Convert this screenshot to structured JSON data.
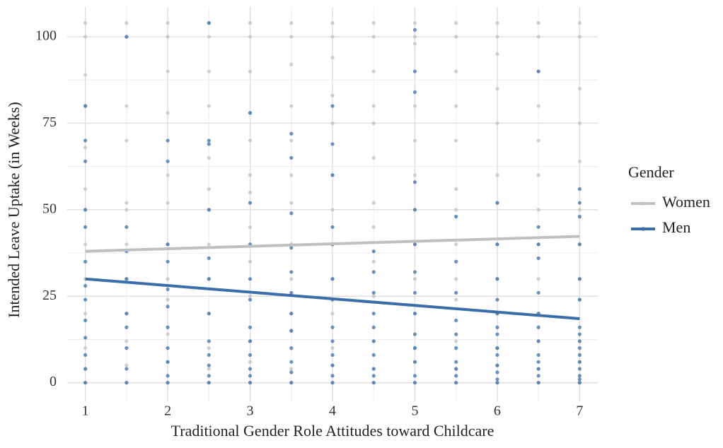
{
  "chart_data": {
    "type": "scatter",
    "x_label": "Traditional Gender Role Attitudes toward Childcare",
    "y_label": "Intended Leave Uptake (in Weeks)",
    "legend_title": "Gender",
    "legend": "right",
    "grid": true,
    "xlim": [
      0.78,
      7.22
    ],
    "ylim": [
      -5.4,
      108.6
    ],
    "xticks": [
      1,
      2,
      3,
      4,
      5,
      6,
      7
    ],
    "yticks": [
      0,
      25,
      50,
      75,
      100
    ],
    "series": [
      {
        "name": "Women",
        "color": "#c0c0c0",
        "x": [
          1,
          1,
          1,
          1,
          1,
          1,
          1,
          1,
          1,
          1,
          1,
          1,
          1,
          1.5,
          1.5,
          1.5,
          1.5,
          1.5,
          1.5,
          1.5,
          1.5,
          1.5,
          1.5,
          1.5,
          1.5,
          2,
          2,
          2,
          2,
          2,
          2,
          2,
          2,
          2,
          2,
          2,
          2,
          2.5,
          2.5,
          2.5,
          2.5,
          2.5,
          2.5,
          2.5,
          2.5,
          2.5,
          2.5,
          2.5,
          2.5,
          2.5,
          3,
          3,
          3,
          3,
          3,
          3,
          3,
          3,
          3,
          3,
          3,
          3,
          3,
          3.5,
          3.5,
          3.5,
          3.5,
          3.5,
          3.5,
          3.5,
          3.5,
          3.5,
          3.5,
          3.5,
          3.5,
          3.5,
          4,
          4,
          4,
          4,
          4,
          4,
          4,
          4,
          4,
          4,
          4,
          4,
          4,
          4.5,
          4.5,
          4.5,
          4.5,
          4.5,
          4.5,
          4.5,
          4.5,
          4.5,
          4.5,
          4.5,
          4.5,
          4.5,
          5,
          5,
          5,
          5,
          5,
          5,
          5,
          5,
          5,
          5,
          5,
          5,
          5,
          5.5,
          5.5,
          5.5,
          5.5,
          5.5,
          5.5,
          5.5,
          5.5,
          5.5,
          5.5,
          5.5,
          5.5,
          5.5,
          6,
          6,
          6,
          6,
          6,
          6,
          6,
          6,
          6,
          6,
          6,
          6,
          6,
          6.5,
          6.5,
          6.5,
          6.5,
          6.5,
          6.5,
          6.5,
          6.5,
          6.5,
          6.5,
          6.5,
          6.5,
          6.5,
          7,
          7,
          7,
          7,
          7,
          7,
          7,
          7,
          7,
          7,
          7,
          7
        ],
        "values": [
          0,
          4,
          10,
          20,
          30,
          40,
          50,
          56,
          68,
          80,
          89,
          100,
          104,
          0,
          5,
          12,
          20,
          30,
          40,
          50,
          52,
          70,
          80,
          100,
          104,
          0,
          6,
          14,
          24,
          30,
          40,
          52,
          60,
          78,
          90,
          100,
          104,
          0,
          4,
          10,
          20,
          30,
          40,
          50,
          56,
          65,
          80,
          90,
          100,
          104,
          0,
          6,
          12,
          25,
          35,
          45,
          55,
          60,
          70,
          78,
          90,
          100,
          104,
          0,
          4,
          15,
          20,
          30,
          40,
          52,
          60,
          70,
          80,
          92,
          100,
          104,
          0,
          5,
          10,
          20,
          30,
          40,
          50,
          60,
          75,
          83,
          94,
          100,
          104,
          0,
          4,
          12,
          25,
          35,
          45,
          52,
          65,
          75,
          80,
          90,
          100,
          104,
          0,
          6,
          10,
          20,
          30,
          40,
          50,
          60,
          70,
          80,
          98,
          100,
          104,
          0,
          4,
          12,
          24,
          30,
          40,
          50,
          56,
          70,
          80,
          90,
          100,
          104,
          0,
          5,
          10,
          20,
          30,
          40,
          52,
          60,
          75,
          85,
          95,
          100,
          104,
          0,
          4,
          12,
          20,
          30,
          40,
          50,
          60,
          70,
          80,
          90,
          100,
          104,
          0,
          6,
          12,
          24,
          30,
          40,
          50,
          64,
          75,
          85,
          100,
          104
        ],
        "fit": {
          "x": [
            1,
            7
          ],
          "values": [
            38,
            42.3
          ]
        }
      },
      {
        "name": "Men",
        "color": "#3b6ea8",
        "x": [
          1,
          1,
          1,
          1,
          1,
          1,
          1,
          1,
          1,
          1,
          1,
          1,
          1,
          1.5,
          1.5,
          1.5,
          1.5,
          1.5,
          1.5,
          1.5,
          1.5,
          1.5,
          2,
          2,
          2,
          2,
          2,
          2,
          2,
          2,
          2,
          2,
          2,
          2.5,
          2.5,
          2.5,
          2.5,
          2.5,
          2.5,
          2.5,
          2.5,
          2.5,
          2.5,
          2.5,
          2.5,
          3,
          3,
          3,
          3,
          3,
          3,
          3,
          3,
          3,
          3,
          3,
          3.5,
          3.5,
          3.5,
          3.5,
          3.5,
          3.5,
          3.5,
          3.5,
          3.5,
          3.5,
          3.5,
          3.5,
          4,
          4,
          4,
          4,
          4,
          4,
          4,
          4,
          4,
          4,
          4,
          4,
          4,
          4.5,
          4.5,
          4.5,
          4.5,
          4.5,
          4.5,
          4.5,
          4.5,
          4.5,
          4.5,
          5,
          5,
          5,
          5,
          5,
          5,
          5,
          5,
          5,
          5,
          5,
          5,
          5,
          5,
          5.5,
          5.5,
          5.5,
          5.5,
          5.5,
          5.5,
          5.5,
          5.5,
          5.5,
          5.5,
          6,
          6,
          6,
          6,
          6,
          6,
          6,
          6,
          6,
          6,
          6,
          6,
          6,
          6.5,
          6.5,
          6.5,
          6.5,
          6.5,
          6.5,
          6.5,
          6.5,
          6.5,
          6.5,
          6.5,
          6.5,
          6.5,
          7,
          7,
          7,
          7,
          7,
          7,
          7,
          7,
          7,
          7,
          7,
          7,
          7,
          7,
          7,
          7
        ],
        "values": [
          0,
          4,
          8,
          13,
          18,
          24,
          28,
          35,
          45,
          50,
          64,
          70,
          80,
          0,
          4,
          10,
          16,
          20,
          30,
          38,
          45,
          100,
          0,
          2,
          6,
          10,
          16,
          22,
          27,
          35,
          40,
          64,
          70,
          0,
          2,
          5,
          8,
          12,
          20,
          30,
          36,
          50,
          69,
          70,
          104,
          0,
          2,
          4,
          8,
          12,
          16,
          24,
          30,
          40,
          52,
          78,
          0,
          3,
          6,
          10,
          15,
          20,
          26,
          32,
          39,
          49,
          65,
          72,
          0,
          2,
          5,
          8,
          12,
          16,
          24,
          30,
          40,
          45,
          60,
          69,
          80,
          0,
          2,
          4,
          8,
          12,
          16,
          20,
          26,
          32,
          38,
          0,
          2,
          6,
          10,
          14,
          20,
          26,
          32,
          40,
          50,
          58,
          84,
          90,
          102,
          0,
          2,
          4,
          6,
          10,
          14,
          18,
          26,
          35,
          48,
          0,
          1,
          3,
          5,
          8,
          10,
          14,
          16,
          20,
          24,
          30,
          40,
          52,
          0,
          2,
          4,
          6,
          8,
          12,
          16,
          20,
          26,
          36,
          40,
          45,
          90,
          0,
          1,
          2,
          4,
          6,
          8,
          10,
          12,
          14,
          16,
          24,
          30,
          40,
          48,
          52,
          56
        ],
        "fit": {
          "x": [
            1,
            7
          ],
          "values": [
            30,
            18.5
          ]
        }
      }
    ]
  }
}
